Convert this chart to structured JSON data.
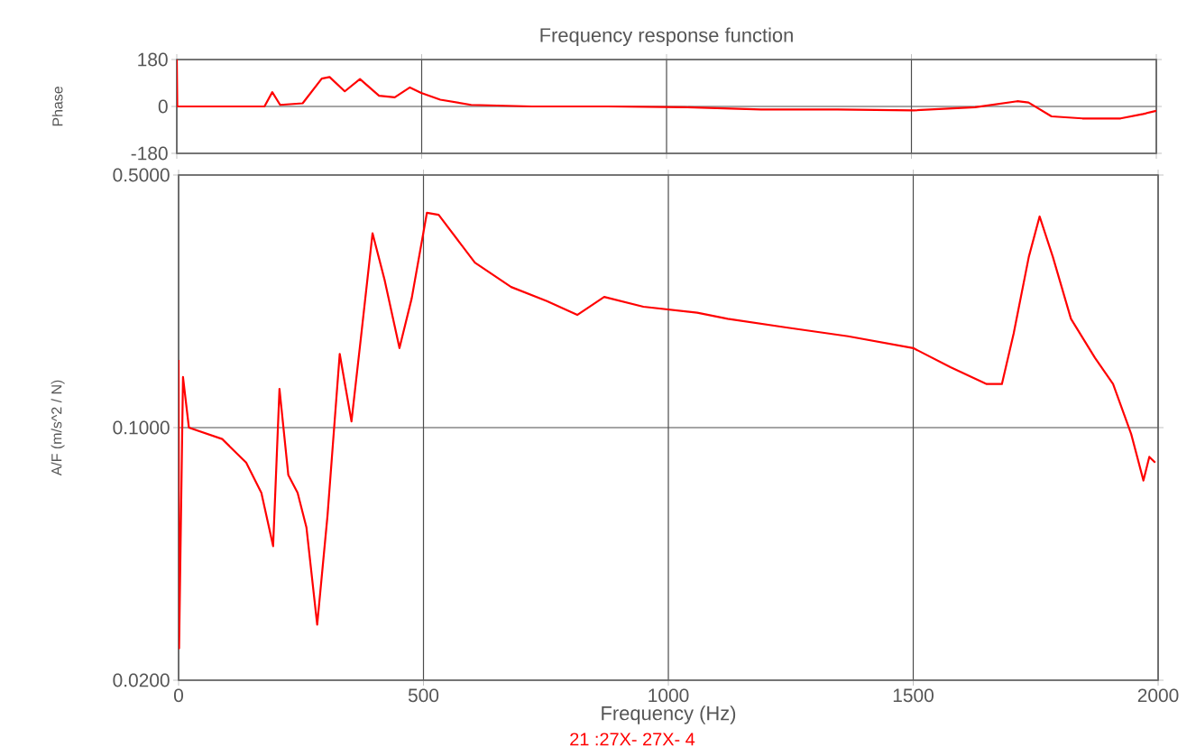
{
  "chart_data": [
    {
      "type": "line",
      "title": "Frequency response function",
      "ylabel": "Phase",
      "xlim": [
        0,
        2000
      ],
      "xticks": [
        0,
        500,
        1000,
        1500,
        2000
      ],
      "ylim": [
        -180,
        180
      ],
      "yticks": [
        180,
        0,
        -180
      ],
      "grid": true,
      "tick_labels": "y",
      "color": "#ff0000",
      "x": [
        0,
        1,
        179,
        195,
        211,
        257,
        296,
        312,
        343,
        374,
        413,
        445,
        476,
        499,
        538,
        601,
        725,
        881,
        1037,
        1193,
        1349,
        1505,
        1630,
        1716,
        1739,
        1786,
        1849,
        1927,
        1973,
        2000
      ],
      "values": [
        180,
        0,
        0,
        55,
        6,
        12,
        107,
        113,
        58,
        105,
        41,
        35,
        73,
        52,
        26,
        6,
        0,
        0,
        -3,
        -12,
        -12,
        -15,
        -3,
        20,
        15,
        -38,
        -46,
        -46,
        -29,
        -17
      ]
    },
    {
      "type": "line",
      "xlabel": "Frequency (Hz)",
      "ylabel": "A/F (m/s^2 / N)",
      "annotations": [
        "21 :27X- 27X- 4"
      ],
      "log": "y",
      "xlim": [
        0,
        2000
      ],
      "xticks": [
        0,
        500,
        1000,
        1500,
        2000
      ],
      "ylim": [
        0.02,
        0.5
      ],
      "yticks": [
        {
          "value": 0.02,
          "label": "0.0200"
        },
        {
          "value": 0.1,
          "label": "0.1000"
        },
        {
          "value": 0.5,
          "label": "0.5000"
        }
      ],
      "grid": true,
      "color": "#ff0000",
      "x": [
        0,
        1,
        9,
        21,
        89,
        138,
        169,
        193,
        206,
        224,
        243,
        261,
        283,
        304,
        329,
        353,
        372,
        396,
        421,
        451,
        476,
        507,
        531,
        605,
        679,
        752,
        814,
        869,
        949,
        1059,
        1121,
        1244,
        1367,
        1500,
        1576,
        1650,
        1681,
        1705,
        1736,
        1758,
        1785,
        1822,
        1871,
        1908,
        1945,
        1970,
        1982,
        1994
      ],
      "values": [
        0.154,
        0.0245,
        0.138,
        0.1,
        0.093,
        0.08,
        0.066,
        0.047,
        0.128,
        0.074,
        0.066,
        0.053,
        0.0285,
        0.057,
        0.16,
        0.104,
        0.176,
        0.345,
        0.255,
        0.166,
        0.228,
        0.393,
        0.388,
        0.286,
        0.245,
        0.224,
        0.205,
        0.23,
        0.216,
        0.208,
        0.2,
        0.189,
        0.179,
        0.166,
        0.147,
        0.132,
        0.132,
        0.182,
        0.297,
        0.384,
        0.297,
        0.2,
        0.156,
        0.132,
        0.096,
        0.0714,
        0.083,
        0.08
      ]
    }
  ]
}
